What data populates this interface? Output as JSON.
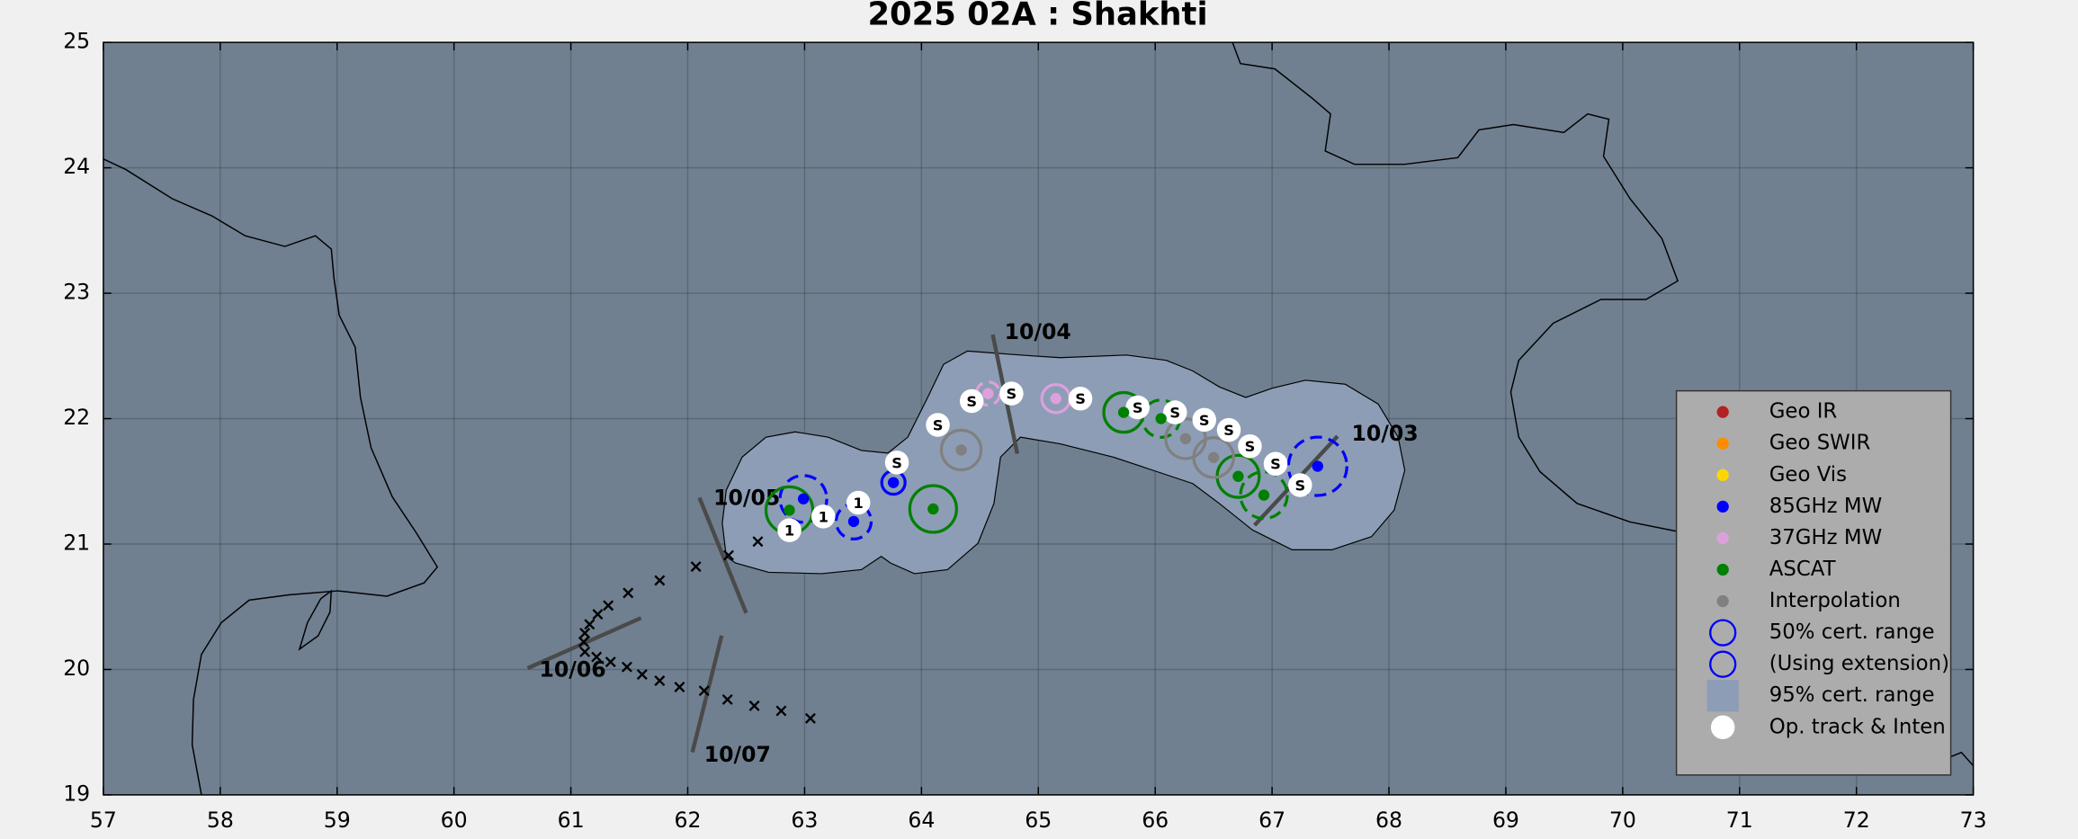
{
  "chart_data": {
    "type": "map",
    "title": "2025  02A :  Shakhti",
    "xlim": [
      57,
      73
    ],
    "ylim": [
      19,
      25
    ],
    "xticks": [
      57,
      58,
      59,
      60,
      61,
      62,
      63,
      64,
      65,
      66,
      67,
      68,
      69,
      70,
      71,
      72,
      73
    ],
    "yticks": [
      19,
      20,
      21,
      22,
      23,
      24,
      25
    ],
    "grid": true,
    "series": [
      {
        "name": "Geo IR",
        "color": "#b22222",
        "x": [],
        "y": [],
        "radius": [],
        "extension": []
      },
      {
        "name": "Geo SWIR",
        "color": "#ff8c00",
        "x": [],
        "y": [],
        "radius": [],
        "extension": []
      },
      {
        "name": "Geo Vis",
        "color": "#ffd700",
        "x": [],
        "y": [],
        "radius": [],
        "extension": []
      },
      {
        "name": "85GHz MW",
        "color": "#0000ff",
        "x": [
          67.39,
          62.99,
          63.42,
          63.76
        ],
        "y": [
          21.62,
          21.36,
          21.18,
          21.49
        ],
        "radius": [
          0.25,
          0.2,
          0.15,
          0.1
        ],
        "extension": [
          true,
          true,
          true,
          false
        ]
      },
      {
        "name": "37GHz MW",
        "color": "#dda0dd",
        "x": [
          64.57,
          65.15
        ],
        "y": [
          22.2,
          22.16
        ],
        "radius": [
          0.1,
          0.12
        ],
        "extension": [
          true,
          false
        ]
      },
      {
        "name": "ASCAT",
        "color": "#008000",
        "x": [
          66.93,
          66.71,
          66.05,
          65.73,
          64.1,
          62.87
        ],
        "y": [
          21.39,
          21.54,
          22.0,
          22.05,
          21.28,
          21.27
        ],
        "radius": [
          0.2,
          0.18,
          0.16,
          0.17,
          0.2,
          0.2
        ],
        "extension": [
          true,
          false,
          true,
          false,
          false,
          false
        ]
      },
      {
        "name": "Interpolation",
        "color": "#808080",
        "x": [
          64.34,
          66.26,
          66.5
        ],
        "y": [
          21.75,
          21.84,
          21.69
        ],
        "radius": [
          0.17,
          0.17,
          0.17
        ],
        "extension": [
          false,
          false,
          false
        ]
      }
    ],
    "range_legend": [
      {
        "name": "50% cert. range",
        "color": "#0000ff",
        "marker": "ring"
      },
      {
        "name": "(Using extension)",
        "color": "#0000ff",
        "marker": "ring"
      },
      {
        "name": "95% cert. range",
        "color": "#8d9db5",
        "marker": "square"
      }
    ],
    "op_track": {
      "name": "Op. track & Inten",
      "color": "#ffffff",
      "x": [
        67.24,
        67.03,
        66.81,
        66.63,
        66.42,
        66.17,
        65.85,
        65.36,
        64.77,
        64.43,
        64.14,
        63.79,
        63.46,
        63.16,
        62.87
      ],
      "y": [
        21.47,
        21.64,
        21.78,
        21.91,
        21.99,
        22.05,
        22.09,
        22.16,
        22.2,
        22.14,
        21.95,
        21.65,
        21.33,
        21.22,
        21.11
      ],
      "labels": [
        "S",
        "S",
        "S",
        "S",
        "S",
        "S",
        "S",
        "S",
        "S",
        "S",
        "S",
        "S",
        "1",
        "1",
        "1"
      ]
    },
    "forecast_track": {
      "color": "#000000",
      "x": [
        63.05,
        62.8,
        62.57,
        62.34,
        62.14,
        61.93,
        61.76,
        61.61,
        61.48,
        61.34,
        61.22,
        61.12,
        61.11,
        61.12,
        61.16,
        61.23,
        61.32,
        61.49,
        61.76,
        62.07,
        62.35,
        62.6
      ],
      "y": [
        19.61,
        19.67,
        19.71,
        19.76,
        19.83,
        19.86,
        19.91,
        19.96,
        20.02,
        20.06,
        20.1,
        20.14,
        20.22,
        20.29,
        20.36,
        20.44,
        20.51,
        20.61,
        20.71,
        20.82,
        20.91,
        21.02
      ]
    },
    "date_labels": [
      {
        "text": "10/03",
        "x": 67.68,
        "y": 21.87,
        "bar_x": [
          66.85,
          67.56
        ],
        "bar_y": [
          21.15,
          21.86
        ]
      },
      {
        "text": "10/04",
        "x": 64.71,
        "y": 22.68,
        "bar_x": [
          64.61,
          64.82
        ],
        "bar_y": [
          22.67,
          21.72
        ]
      },
      {
        "text": "10/05",
        "x": 62.22,
        "y": 21.36,
        "bar_x": [
          62.1,
          62.5
        ],
        "bar_y": [
          21.37,
          20.45
        ]
      },
      {
        "text": "10/06",
        "x": 60.73,
        "y": 19.99,
        "bar_x": [
          60.63,
          61.6
        ],
        "bar_y": [
          20.01,
          20.41
        ]
      },
      {
        "text": "10/07",
        "x": 62.14,
        "y": 19.31,
        "bar_x": [
          62.29,
          62.04
        ],
        "bar_y": [
          20.27,
          19.34
        ]
      }
    ]
  }
}
